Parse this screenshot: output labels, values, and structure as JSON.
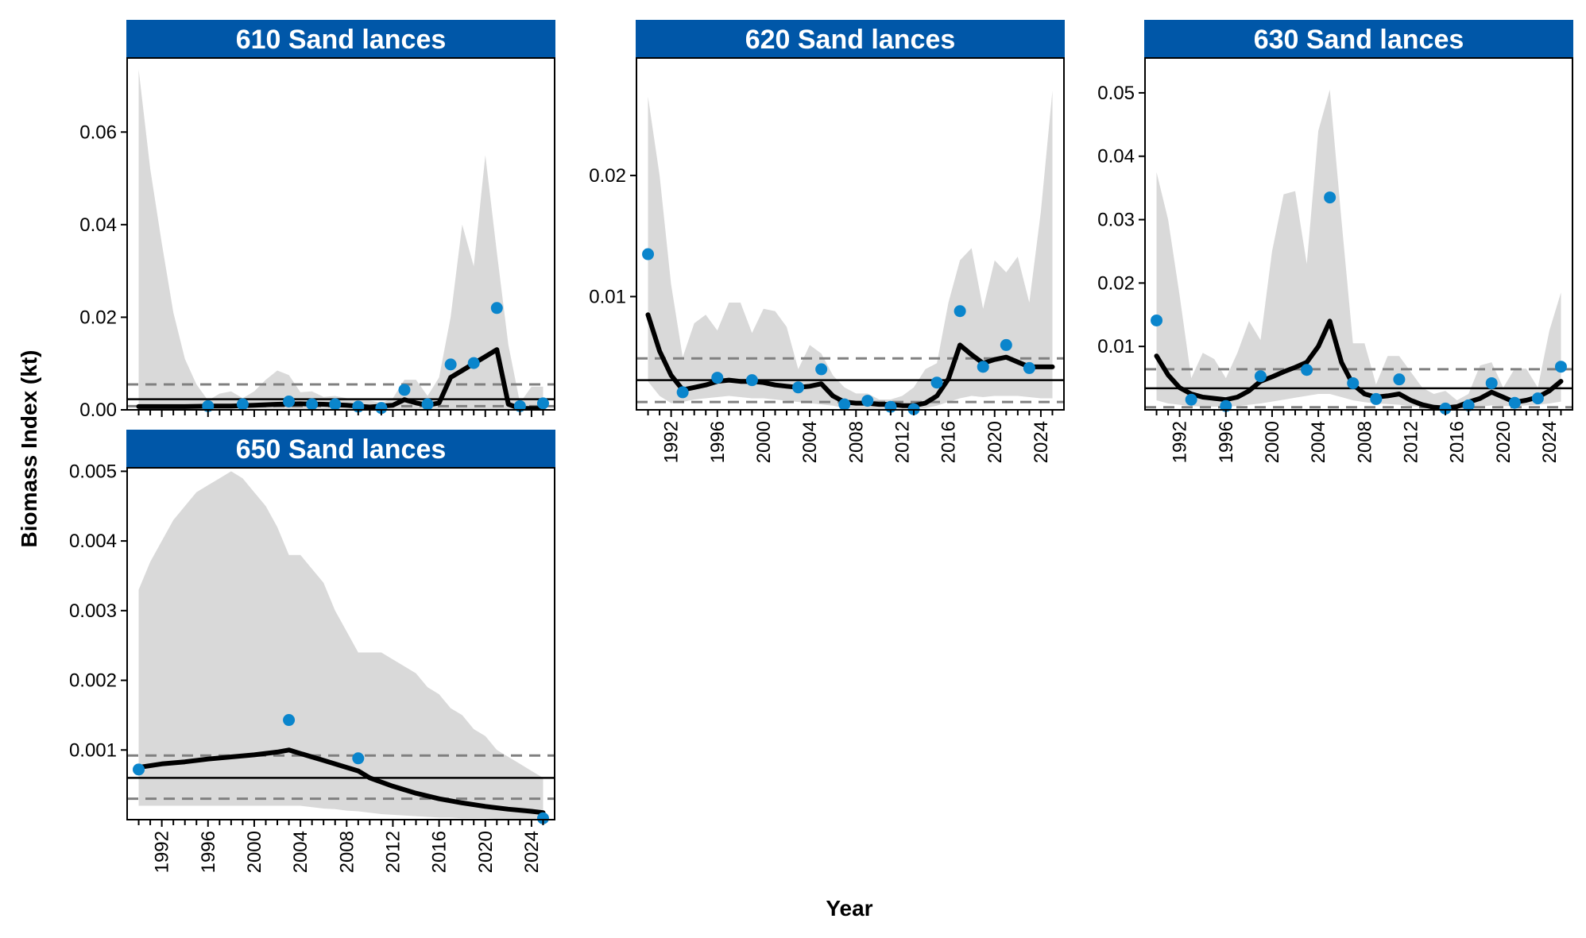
{
  "figure": {
    "ylabel": "Biomass Index (kt)",
    "xlabel": "Year",
    "strip_color": "#0057A8",
    "point_color": "#0A85CC",
    "ribbon_color": "#D9D9D9",
    "line_color": "#000000",
    "ref_dash_color": "#808080"
  },
  "chart_data": [
    {
      "type": "line",
      "title": "610 Sand lances",
      "xlim": [
        1989,
        2026
      ],
      "ylim": [
        0,
        0.076
      ],
      "yticks": [
        0,
        0.02,
        0.04,
        0.06
      ],
      "ytick_labels": [
        "0.00",
        "0.02",
        "0.04",
        "0.06"
      ],
      "xticks": [
        1992,
        1996,
        2000,
        2004,
        2008,
        2012,
        2016,
        2020,
        2024
      ],
      "xtick_labels": [],
      "ribbon": {
        "x": [
          1990,
          1991,
          1992,
          1993,
          1994,
          1995,
          1996,
          1997,
          1998,
          1999,
          2000,
          2001,
          2002,
          2003,
          2004,
          2005,
          2006,
          2007,
          2008,
          2009,
          2010,
          2011,
          2012,
          2013,
          2014,
          2015,
          2016,
          2017,
          2018,
          2019,
          2020,
          2021,
          2022,
          2023,
          2024,
          2025
        ],
        "upper": [
          0.0735,
          0.052,
          0.036,
          0.021,
          0.011,
          0.0055,
          0.002,
          0.0035,
          0.004,
          0.0025,
          0.004,
          0.0065,
          0.0085,
          0.0075,
          0.0038,
          0.004,
          0.0028,
          0.003,
          0.0025,
          0.002,
          0.002,
          0.0015,
          0.0025,
          0.0065,
          0.0065,
          0.003,
          0.007,
          0.02,
          0.04,
          0.031,
          0.055,
          0.034,
          0.014,
          0.0015,
          0.005,
          0.005
        ],
        "lower": [
          0,
          0,
          0,
          0,
          0,
          0,
          0,
          0,
          0,
          0,
          0,
          0,
          0,
          0,
          0,
          0,
          0,
          0,
          0,
          0,
          0,
          0,
          0,
          0,
          0,
          0,
          0,
          0,
          0,
          0,
          0,
          0,
          0,
          0,
          0,
          0
        ]
      },
      "trend": {
        "x": [
          1990,
          1992,
          1994,
          1996,
          1998,
          2000,
          2002,
          2004,
          2006,
          2008,
          2010,
          2011,
          2012,
          2013,
          2014,
          2015,
          2016,
          2017,
          2018,
          2019,
          2020,
          2021,
          2022,
          2023,
          2024,
          2025
        ],
        "y": [
          0.0007,
          0.0007,
          0.0007,
          0.0008,
          0.0008,
          0.001,
          0.0012,
          0.0013,
          0.0012,
          0.001,
          0.0006,
          0.0008,
          0.001,
          0.0022,
          0.0015,
          0.001,
          0.0015,
          0.007,
          0.0085,
          0.01,
          0.0115,
          0.013,
          0.0012,
          0.0003,
          0.0003,
          0.0003
        ]
      },
      "points": {
        "x": [
          1996,
          1999,
          2003,
          2005,
          2007,
          2009,
          2011,
          2013,
          2015,
          2017,
          2019,
          2021,
          2023,
          2025
        ],
        "y": [
          0.0008,
          0.0012,
          0.0018,
          0.0012,
          0.0012,
          0.0007,
          0.0004,
          0.0043,
          0.0012,
          0.0098,
          0.0101,
          0.022,
          0.0008,
          0.0014
        ]
      },
      "hlines": {
        "solid": 0.0023,
        "dashed": [
          0.0055,
          0.0008
        ]
      }
    },
    {
      "type": "line",
      "title": "620 Sand lances",
      "xlim": [
        1989,
        2026
      ],
      "ylim": [
        0.00065,
        0.0297
      ],
      "yticks": [
        0.01,
        0.02
      ],
      "ytick_labels": [
        "0.01",
        "0.02"
      ],
      "xticks": [
        1992,
        1996,
        2000,
        2004,
        2008,
        2012,
        2016,
        2020,
        2024
      ],
      "xtick_labels": [
        "1992",
        "1996",
        "2000",
        "2004",
        "2008",
        "2012",
        "2016",
        "2020",
        "2024"
      ],
      "ribbon": {
        "x": [
          1990,
          1991,
          1992,
          1993,
          1994,
          1995,
          1996,
          1997,
          1998,
          1999,
          2000,
          2001,
          2002,
          2003,
          2004,
          2005,
          2006,
          2007,
          2008,
          2009,
          2010,
          2011,
          2012,
          2013,
          2014,
          2015,
          2016,
          2017,
          2018,
          2019,
          2020,
          2021,
          2022,
          2023,
          2024,
          2025
        ],
        "upper": [
          0.0265,
          0.02,
          0.011,
          0.005,
          0.0078,
          0.0085,
          0.0072,
          0.0095,
          0.0095,
          0.007,
          0.009,
          0.0088,
          0.0075,
          0.004,
          0.006,
          0.0053,
          0.0035,
          0.0025,
          0.002,
          0.002,
          0.0015,
          0.0015,
          0.0018,
          0.0025,
          0.004,
          0.0045,
          0.0095,
          0.013,
          0.014,
          0.009,
          0.013,
          0.012,
          0.0133,
          0.0095,
          0.017,
          0.027
        ],
        "lower": [
          0.003,
          0.0018,
          0.0012,
          0.0013,
          0.0015,
          0.0016,
          0.0017,
          0.0018,
          0.0017,
          0.0016,
          0.0016,
          0.0015,
          0.0014,
          0.0013,
          0.0012,
          0.0011,
          0.001,
          0.0008,
          0.0007,
          0.0007,
          0.0007,
          0.0007,
          0.0007,
          0.0007,
          0.0008,
          0.001,
          0.0013,
          0.0016,
          0.0018,
          0.0017,
          0.0018,
          0.0018,
          0.0018,
          0.0017,
          0.0016,
          0.0016
        ]
      },
      "trend": {
        "x": [
          1990,
          1991,
          1992,
          1993,
          1994,
          1995,
          1996,
          1997,
          1998,
          1999,
          2000,
          2001,
          2002,
          2003,
          2004,
          2005,
          2006,
          2007,
          2008,
          2009,
          2010,
          2011,
          2012,
          2013,
          2014,
          2015,
          2016,
          2017,
          2018,
          2019,
          2020,
          2021,
          2022,
          2023,
          2024,
          2025
        ],
        "y": [
          0.0085,
          0.0055,
          0.0035,
          0.0023,
          0.0025,
          0.0027,
          0.003,
          0.0031,
          0.003,
          0.003,
          0.0029,
          0.0027,
          0.0026,
          0.0025,
          0.0026,
          0.0028,
          0.0018,
          0.0013,
          0.0012,
          0.0012,
          0.0011,
          0.0011,
          0.001,
          0.001,
          0.0012,
          0.0018,
          0.0032,
          0.006,
          0.0052,
          0.0045,
          0.0048,
          0.005,
          0.0046,
          0.0042,
          0.0042,
          0.0042
        ]
      },
      "points": {
        "x": [
          1990,
          1993,
          1996,
          1999,
          2003,
          2005,
          2007,
          2009,
          2011,
          2013,
          2015,
          2017,
          2019,
          2021,
          2023
        ],
        "y": [
          0.0135,
          0.0021,
          0.0033,
          0.0031,
          0.0025,
          0.004,
          0.0011,
          0.0014,
          0.0009,
          0.0007,
          0.0029,
          0.0088,
          0.0042,
          0.006,
          0.0041
        ]
      },
      "hlines": {
        "solid": 0.0031,
        "dashed": [
          0.0049,
          0.0013
        ]
      }
    },
    {
      "type": "line",
      "title": "630 Sand lances",
      "xlim": [
        1989,
        2026
      ],
      "ylim": [
        0,
        0.0555
      ],
      "yticks": [
        0.01,
        0.02,
        0.03,
        0.04,
        0.05
      ],
      "ytick_labels": [
        "0.01",
        "0.02",
        "0.03",
        "0.04",
        "0.05"
      ],
      "xticks": [
        1992,
        1996,
        2000,
        2004,
        2008,
        2012,
        2016,
        2020,
        2024
      ],
      "xtick_labels": [
        "1992",
        "1996",
        "2000",
        "2004",
        "2008",
        "2012",
        "2016",
        "2020",
        "2024"
      ],
      "ribbon": {
        "x": [
          1990,
          1991,
          1992,
          1993,
          1994,
          1995,
          1996,
          1997,
          1998,
          1999,
          2000,
          2001,
          2002,
          2003,
          2004,
          2005,
          2006,
          2007,
          2008,
          2009,
          2010,
          2011,
          2012,
          2013,
          2014,
          2015,
          2016,
          2017,
          2018,
          2019,
          2020,
          2021,
          2022,
          2023,
          2024,
          2025
        ],
        "upper": [
          0.0375,
          0.03,
          0.018,
          0.005,
          0.009,
          0.008,
          0.005,
          0.009,
          0.014,
          0.011,
          0.025,
          0.034,
          0.0345,
          0.023,
          0.044,
          0.0505,
          0.03,
          0.0105,
          0.0105,
          0.004,
          0.0085,
          0.0085,
          0.006,
          0.0035,
          0.0025,
          0.003,
          0.0015,
          0.0025,
          0.007,
          0.0075,
          0.0035,
          0.0065,
          0.0065,
          0.0035,
          0.0125,
          0.0185
        ],
        "lower": [
          0.0015,
          0.001,
          0.0008,
          0.0006,
          0.0005,
          0.0005,
          0.0005,
          0.0006,
          0.0008,
          0.001,
          0.0013,
          0.0016,
          0.0019,
          0.0022,
          0.0025,
          0.0025,
          0.002,
          0.0015,
          0.0012,
          0.001,
          0.0009,
          0.0008,
          0.0006,
          0.0004,
          0.0003,
          0.0003,
          0.0003,
          0.0003,
          0.0005,
          0.0007,
          0.0006,
          0.0006,
          0.0007,
          0.0008,
          0.001,
          0.0013
        ]
      },
      "trend": {
        "x": [
          1990,
          1991,
          1992,
          1993,
          1994,
          1995,
          1996,
          1997,
          1998,
          1999,
          2000,
          2001,
          2002,
          2003,
          2004,
          2005,
          2006,
          2007,
          2008,
          2009,
          2010,
          2011,
          2012,
          2013,
          2014,
          2015,
          2016,
          2017,
          2018,
          2019,
          2020,
          2021,
          2022,
          2023,
          2024,
          2025
        ],
        "y": [
          0.0085,
          0.0055,
          0.0035,
          0.0025,
          0.002,
          0.0018,
          0.0016,
          0.002,
          0.003,
          0.0045,
          0.0052,
          0.006,
          0.0067,
          0.0075,
          0.01,
          0.014,
          0.0075,
          0.004,
          0.0025,
          0.002,
          0.0022,
          0.0025,
          0.0015,
          0.0008,
          0.0004,
          0.0003,
          0.0005,
          0.0012,
          0.0018,
          0.0028,
          0.002,
          0.0012,
          0.0015,
          0.002,
          0.003,
          0.0045
        ]
      },
      "points": {
        "x": [
          1990,
          1993,
          1996,
          1999,
          2003,
          2005,
          2007,
          2009,
          2011,
          2015,
          2017,
          2019,
          2021,
          2023,
          2025
        ],
        "y": [
          0.0141,
          0.0016,
          0.0006,
          0.0053,
          0.0063,
          0.0335,
          0.0042,
          0.0017,
          0.0048,
          0.0002,
          0.0007,
          0.0042,
          0.0011,
          0.0018,
          0.0068
        ]
      },
      "hlines": {
        "solid": 0.0034,
        "dashed": [
          0.0064,
          0.0004
        ]
      }
    },
    {
      "type": "line",
      "title": "650 Sand lances",
      "xlim": [
        1989,
        2026
      ],
      "ylim": [
        0,
        0.00505
      ],
      "yticks": [
        0.001,
        0.002,
        0.003,
        0.004,
        0.005
      ],
      "ytick_labels": [
        "0.001",
        "0.002",
        "0.003",
        "0.004",
        "0.005"
      ],
      "xticks": [
        1992,
        1996,
        2000,
        2004,
        2008,
        2012,
        2016,
        2020,
        2024
      ],
      "xtick_labels": [
        "1992",
        "1996",
        "2000",
        "2004",
        "2008",
        "2012",
        "2016",
        "2020",
        "2024"
      ],
      "ribbon": {
        "x": [
          1990,
          1991,
          1992,
          1993,
          1994,
          1995,
          1996,
          1997,
          1998,
          1999,
          2000,
          2001,
          2002,
          2003,
          2004,
          2005,
          2006,
          2007,
          2008,
          2009,
          2010,
          2011,
          2012,
          2013,
          2014,
          2015,
          2016,
          2017,
          2018,
          2019,
          2020,
          2021,
          2022,
          2023,
          2024,
          2025
        ],
        "upper": [
          0.0033,
          0.0037,
          0.004,
          0.0043,
          0.0045,
          0.0047,
          0.0048,
          0.0049,
          0.005,
          0.0049,
          0.0047,
          0.0045,
          0.0042,
          0.0038,
          0.0038,
          0.0036,
          0.0034,
          0.003,
          0.0027,
          0.0024,
          0.0024,
          0.0024,
          0.0023,
          0.0022,
          0.0021,
          0.0019,
          0.0018,
          0.0016,
          0.0015,
          0.0013,
          0.0012,
          0.001,
          0.0009,
          0.0008,
          0.0007,
          0.0006
        ],
        "lower": [
          0.0002,
          0.0002,
          0.0002,
          0.0002,
          0.0002,
          0.0002,
          0.0002,
          0.0002,
          0.0002,
          0.0002,
          0.0002,
          0.0002,
          0.0002,
          0.0002,
          0.0002,
          0.00018,
          0.00016,
          0.00015,
          0.00013,
          0.00012,
          0.0001,
          8e-05,
          7e-05,
          6e-05,
          5e-05,
          4e-05,
          3e-05,
          3e-05,
          2e-05,
          2e-05,
          2e-05,
          1e-05,
          1e-05,
          1e-05,
          1e-05,
          1e-05
        ]
      },
      "trend": {
        "x": [
          1990,
          1992,
          1994,
          1996,
          1998,
          2000,
          2002,
          2003,
          2004,
          2006,
          2008,
          2009,
          2010,
          2012,
          2014,
          2016,
          2018,
          2020,
          2022,
          2024,
          2025
        ],
        "y": [
          0.00075,
          0.0008,
          0.00083,
          0.00087,
          0.0009,
          0.00093,
          0.00097,
          0.001,
          0.00095,
          0.00085,
          0.00075,
          0.0007,
          0.0006,
          0.00048,
          0.00038,
          0.0003,
          0.00024,
          0.00019,
          0.00015,
          0.00012,
          0.0001
        ]
      },
      "points": {
        "x": [
          1990,
          2003,
          2009,
          2025
        ],
        "y": [
          0.00072,
          0.00143,
          0.00088,
          2e-05
        ]
      },
      "hlines": {
        "solid": 0.0006,
        "dashed": [
          0.00092,
          0.0003
        ]
      }
    }
  ]
}
